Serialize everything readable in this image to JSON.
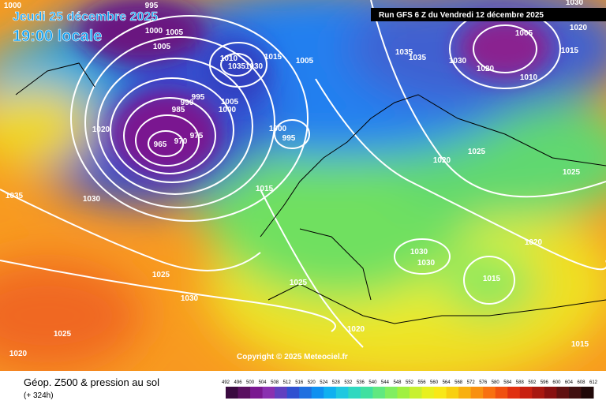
{
  "header": {
    "date": "Jeudi 25 décembre 2025",
    "time": "19:00 locale",
    "run": "Run GFS 6 Z du Vendredi 12 décembre 2025"
  },
  "copyright": "Copyright © 2025 Meteociel.fr",
  "legend": {
    "title": "Géop. Z500 & pression au sol",
    "lead": "(+ 324h)",
    "ticks": [
      492,
      496,
      500,
      504,
      508,
      512,
      516,
      520,
      524,
      528,
      532,
      536,
      540,
      544,
      548,
      552,
      556,
      560,
      564,
      568,
      572,
      576,
      580,
      584,
      588,
      592,
      596,
      600,
      604,
      608,
      612
    ],
    "colors": [
      "#3a0a40",
      "#5a1060",
      "#7a1890",
      "#8a30b0",
      "#6040c0",
      "#3050d0",
      "#2070e0",
      "#1090f0",
      "#10b0f0",
      "#20c8e0",
      "#30d8c0",
      "#40e0a0",
      "#60e880",
      "#80ee60",
      "#a0f040",
      "#c8f030",
      "#e8f020",
      "#f8e818",
      "#f8d010",
      "#f8b010",
      "#f89010",
      "#f87010",
      "#f05010",
      "#e03010",
      "#c82010",
      "#a81810",
      "#881010",
      "#601010",
      "#401010",
      "#200808"
    ]
  },
  "isobar_labels": [
    "995",
    "1000",
    "1005",
    "1000",
    "1005",
    "1010",
    "1035",
    "1030",
    "1015",
    "1005",
    "995",
    "990",
    "985",
    "1005",
    "1000",
    "975",
    "970",
    "965",
    "1020",
    "1000",
    "995",
    "1015",
    "1030",
    "1035",
    "1025",
    "1030",
    "1025",
    "1020",
    "1025",
    "1020",
    "1030",
    "1030",
    "1015",
    "1020",
    "1025",
    "1020",
    "1025",
    "1035",
    "1035",
    "1030",
    "1005",
    "1015",
    "1020",
    "1010",
    "1020",
    "1030",
    "1015"
  ]
}
